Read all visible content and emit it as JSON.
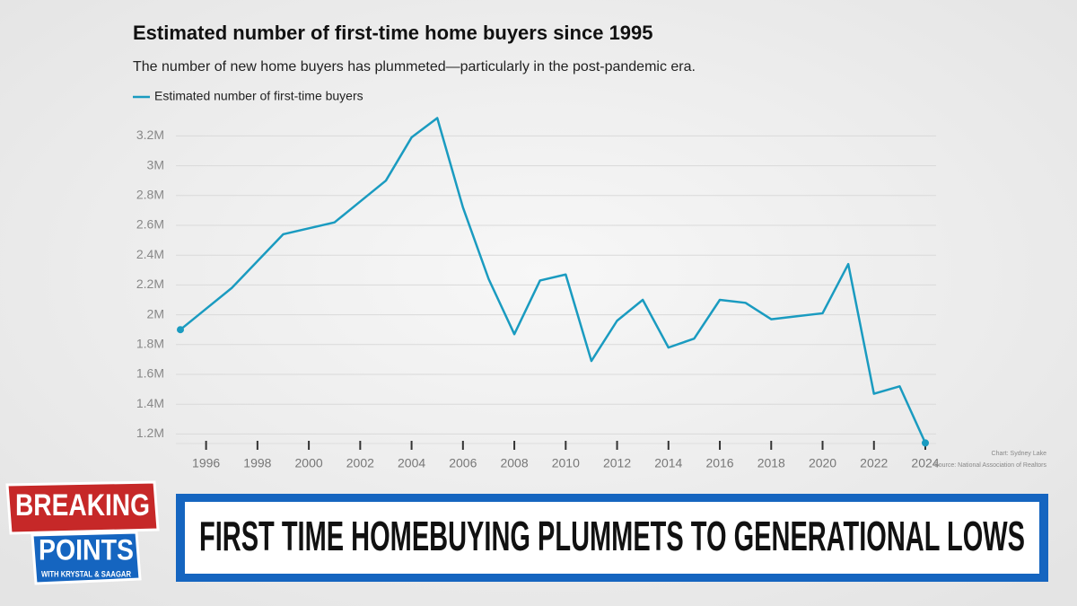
{
  "chart_data": {
    "type": "line",
    "title": "Estimated number of first-time home buyers since 1995",
    "subtitle": "The number of new home buyers has plummeted—particularly in the post-pandemic era.",
    "x": [
      1995,
      1996,
      1997,
      1998,
      1999,
      2000,
      2001,
      2002,
      2003,
      2004,
      2005,
      2006,
      2007,
      2008,
      2009,
      2010,
      2011,
      2012,
      2013,
      2014,
      2015,
      2016,
      2017,
      2018,
      2019,
      2020,
      2021,
      2022,
      2023,
      2024
    ],
    "series": [
      {
        "name": "Estimated number of first-time buyers",
        "color": "#1a9bc0",
        "values": [
          1900000,
          2040000,
          2180000,
          2360000,
          2540000,
          2580000,
          2620000,
          2760000,
          2900000,
          3190000,
          3320000,
          2720000,
          2240000,
          1870000,
          2230000,
          2270000,
          1690000,
          1960000,
          2100000,
          1780000,
          1840000,
          2100000,
          2080000,
          1970000,
          1990000,
          2010000,
          2340000,
          1470000,
          1520000,
          1140000
        ]
      }
    ],
    "xlim": [
      1995,
      2024
    ],
    "xticks": [
      1996,
      1998,
      2000,
      2002,
      2004,
      2006,
      2008,
      2010,
      2012,
      2014,
      2016,
      2018,
      2020,
      2022,
      2024
    ],
    "ylim": [
      1100000,
      3350000
    ],
    "yticks": [
      {
        "value": 1200000,
        "label": "1.2M"
      },
      {
        "value": 1400000,
        "label": "1.4M"
      },
      {
        "value": 1600000,
        "label": "1.6M"
      },
      {
        "value": 1800000,
        "label": "1.8M"
      },
      {
        "value": 2000000,
        "label": "2M"
      },
      {
        "value": 2200000,
        "label": "2.2M"
      },
      {
        "value": 2400000,
        "label": "2.4M"
      },
      {
        "value": 2600000,
        "label": "2.6M"
      },
      {
        "value": 2800000,
        "label": "2.8M"
      },
      {
        "value": 3000000,
        "label": "3M"
      },
      {
        "value": 3200000,
        "label": "3.2M"
      }
    ],
    "grid": true,
    "credit": "Chart: Sydney Lake",
    "source": "Source: National Association of Realtors"
  },
  "logo": {
    "line1": "BREAKING",
    "line2": "POINTS",
    "line3": "WITH KRYSTAL & SAAGAR"
  },
  "banner": {
    "headline": "FIRST TIME HOMEBUYING PLUMMETS TO GENERATIONAL LOWS"
  }
}
